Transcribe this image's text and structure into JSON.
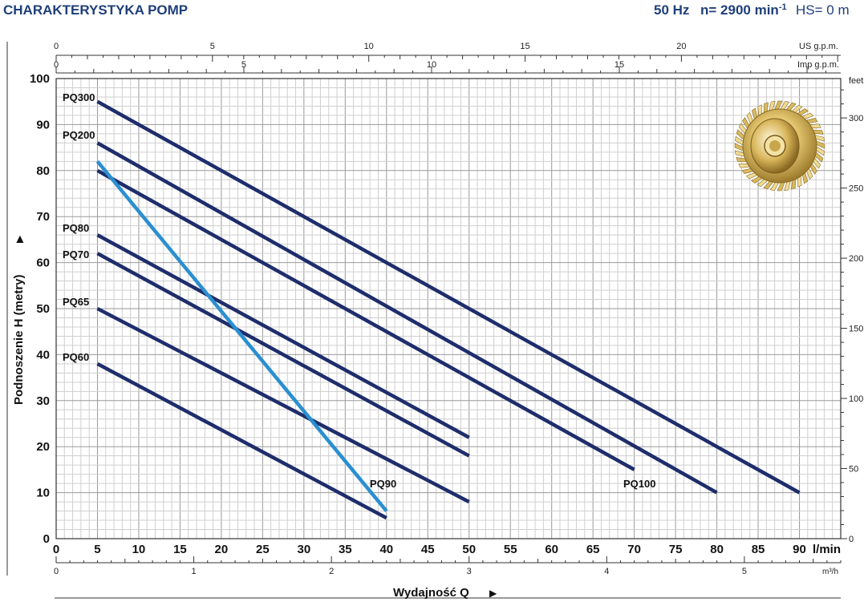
{
  "header": {
    "title": "CHARAKTERYSTYKA POMP",
    "frequency": "50 Hz",
    "speed_prefix": "n= 2900 min",
    "speed_exp": "-1",
    "hs": "HS= 0 m"
  },
  "chart_data": {
    "type": "line",
    "title": "CHARAKTERYSTYKA POMP",
    "xlabel": "Wydajność Q",
    "ylabel": "Podnoszenie H (metry)",
    "x_unit": "l/min",
    "x2_unit": "m³/h",
    "top1_unit": "US g.p.m.",
    "top2_unit": "Imp g.p.m.",
    "right_unit": "feet",
    "xlim": [
      0,
      95
    ],
    "ylim": [
      0,
      100
    ],
    "x_ticks": [
      0,
      5,
      10,
      15,
      20,
      25,
      30,
      35,
      40,
      45,
      50,
      55,
      60,
      65,
      70,
      75,
      80,
      85,
      90
    ],
    "y_ticks": [
      0,
      10,
      20,
      30,
      40,
      50,
      60,
      70,
      80,
      90,
      100
    ],
    "m3h_ticks": [
      0,
      1,
      2,
      3,
      4,
      5
    ],
    "usgpm_ticks": [
      0,
      5,
      10,
      15,
      20
    ],
    "impgpm_ticks": [
      0,
      5,
      10,
      15
    ],
    "feet_ticks": [
      0,
      50,
      100,
      150,
      200,
      250,
      300
    ],
    "grid": true,
    "series": [
      {
        "name": "PQ300",
        "x": [
          5,
          90
        ],
        "y": [
          95,
          10
        ],
        "color": "#1e2d6b"
      },
      {
        "name": "PQ200",
        "x": [
          5,
          80
        ],
        "y": [
          86,
          10
        ],
        "color": "#1e2d6b"
      },
      {
        "name": "PQ100",
        "x": [
          5,
          70
        ],
        "y": [
          80,
          15
        ],
        "color": "#1e2d6b"
      },
      {
        "name": "PQ80",
        "x": [
          5,
          50
        ],
        "y": [
          66,
          22
        ],
        "color": "#1e2d6b"
      },
      {
        "name": "PQ70",
        "x": [
          5,
          50
        ],
        "y": [
          62,
          18
        ],
        "color": "#1e2d6b"
      },
      {
        "name": "PQ65",
        "x": [
          5,
          50
        ],
        "y": [
          50,
          8
        ],
        "color": "#1e2d6b"
      },
      {
        "name": "PQ60",
        "x": [
          5,
          40
        ],
        "y": [
          38,
          4.5
        ],
        "color": "#1e2d6b"
      },
      {
        "name": "PQ90",
        "x": [
          5,
          40
        ],
        "y": [
          82,
          6
        ],
        "color": "#2a8fd0"
      }
    ]
  },
  "image": {
    "name": "impeller-image"
  }
}
